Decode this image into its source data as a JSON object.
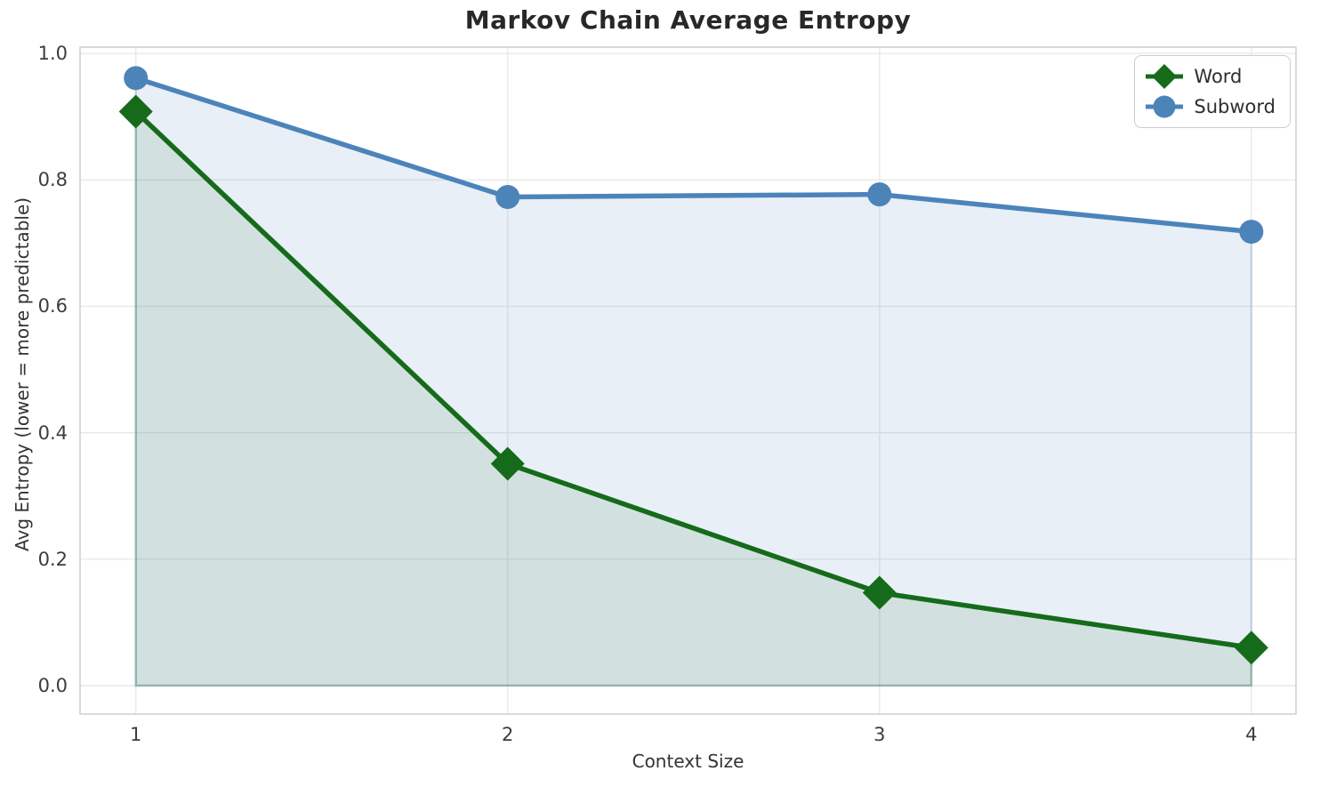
{
  "title": "Markov Chain Average Entropy",
  "axes": {
    "xlabel": "Context Size",
    "ylabel": "Avg Entropy (lower = more predictable)",
    "x_ticks": [
      "1",
      "2",
      "3",
      "4"
    ],
    "y_ticks": [
      "0.0",
      "0.2",
      "0.4",
      "0.6",
      "0.8",
      "1.0"
    ]
  },
  "legend": {
    "position": "upper right",
    "items": [
      {
        "label": "Word",
        "marker": "diamond",
        "color": "#156b1a"
      },
      {
        "label": "Subword",
        "marker": "circle",
        "color": "#4c84ba"
      }
    ]
  },
  "colors": {
    "grid": "#e9e9e9",
    "spine": "#d0d0d0",
    "title_text": "#282828",
    "tick_text": "#3d3d3d",
    "word_green": "#156b1a",
    "subword_blue": "#4c84ba"
  },
  "chart_data": {
    "type": "line",
    "title": "Markov Chain Average Entropy",
    "xlabel": "Context Size",
    "ylabel": "Avg Entropy (lower = more predictable)",
    "x": [
      1,
      2,
      3,
      4
    ],
    "series": [
      {
        "name": "Word",
        "values": [
          0.908,
          0.351,
          0.147,
          0.06
        ],
        "color": "#156b1a",
        "marker": "diamond",
        "fill_to_zero": true,
        "fill_opacity": 0.1
      },
      {
        "name": "Subword",
        "values": [
          0.961,
          0.773,
          0.777,
          0.718
        ],
        "color": "#4c84ba",
        "marker": "circle",
        "fill_to_zero": true,
        "fill_opacity": 0.13
      }
    ],
    "xlim": [
      0.85,
      4.12
    ],
    "ylim": [
      -0.045,
      1.01
    ],
    "grid": true,
    "legend_position": "upper right"
  }
}
